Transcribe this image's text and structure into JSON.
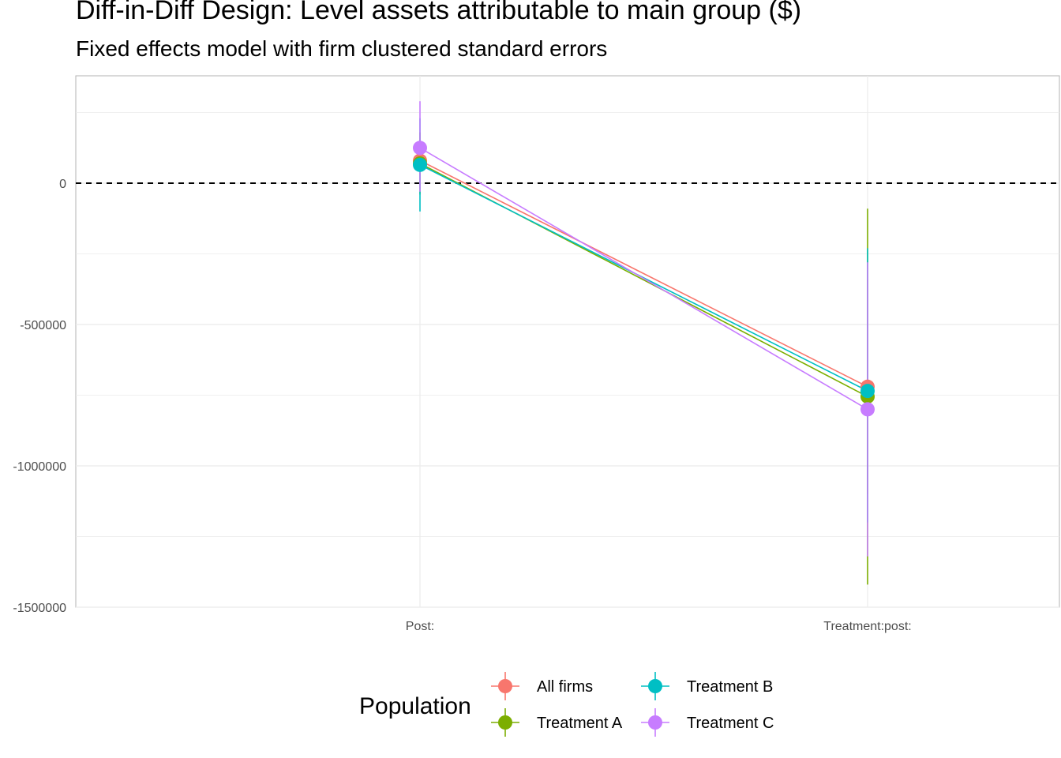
{
  "chart_data": {
    "type": "scatter",
    "title": "Diff-in-Diff Design: Level assets attributable to main group  ($)",
    "subtitle": "Fixed effects model with firm clustered standard errors",
    "xlabel": "",
    "ylabel": "",
    "categories": [
      "Post:",
      "Treatment:post:"
    ],
    "ylim": [
      -1500000,
      380000
    ],
    "yticks": [
      0,
      -500000,
      -1000000,
      -1500000
    ],
    "ytick_labels": [
      "0",
      "-500000",
      "-1000000",
      "-1500000"
    ],
    "reference_line": {
      "y": 0,
      "style": "dashed"
    },
    "grid": true,
    "legend": {
      "title": "Population",
      "placement": "bottom"
    },
    "series": [
      {
        "name": "All firms",
        "color": "#F8766D",
        "values": [
          80000,
          -720000
        ],
        "lower": [
          -20000,
          -1100000
        ],
        "upper": [
          180000,
          -340000
        ]
      },
      {
        "name": "Treatment A",
        "color": "#7CAE00",
        "values": [
          70000,
          -755000
        ],
        "lower": [
          -40000,
          -1420000
        ],
        "upper": [
          180000,
          -90000
        ]
      },
      {
        "name": "Treatment B",
        "color": "#00BFC4",
        "values": [
          65000,
          -735000
        ],
        "lower": [
          -100000,
          -1200000
        ],
        "upper": [
          230000,
          -230000
        ]
      },
      {
        "name": "Treatment C",
        "color": "#C77CFF",
        "values": [
          125000,
          -800000
        ],
        "lower": [
          -30000,
          -1320000
        ],
        "upper": [
          290000,
          -280000
        ]
      }
    ]
  }
}
